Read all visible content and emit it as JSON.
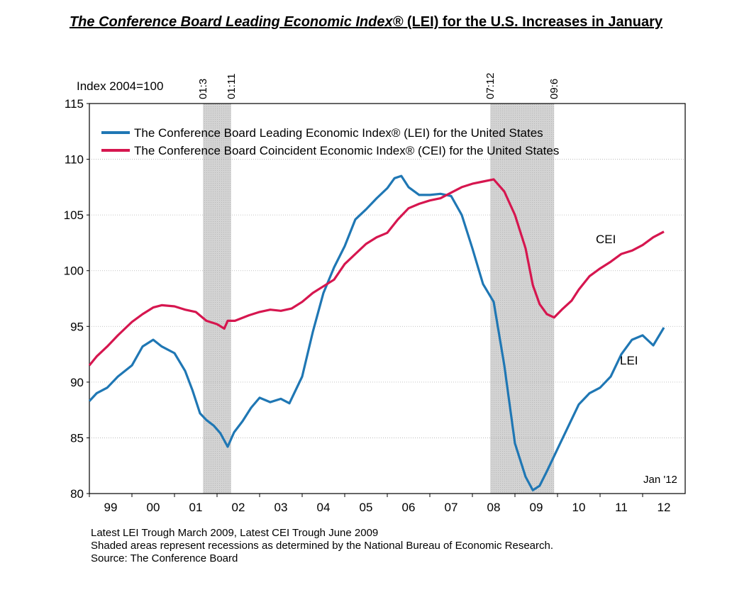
{
  "title": {
    "part1": "The Conference Board Leading Economic Index",
    "reg": "®",
    "part2": " (LEI) for the U.S. Increases in January"
  },
  "notes": [
    "Latest LEI Trough March 2009, Latest CEI Trough June 2009",
    "Shaded areas represent recessions as determined by the National Bureau of Economic Research.",
    "Source: The Conference Board"
  ],
  "colors": {
    "lei": "#1f77b4",
    "cei": "#d6164f",
    "recession": "#d3d3d3"
  },
  "chart_data": {
    "type": "line",
    "ylabel": "Index 2004=100",
    "ylim": [
      80,
      115
    ],
    "yticks": [
      80,
      85,
      90,
      95,
      100,
      105,
      110,
      115
    ],
    "xlim": [
      1998.5,
      2012.5
    ],
    "xtick_labels": [
      {
        "label": "99",
        "x": 1999
      },
      {
        "label": "00",
        "x": 2000
      },
      {
        "label": "01",
        "x": 2001
      },
      {
        "label": "02",
        "x": 2002
      },
      {
        "label": "03",
        "x": 2003
      },
      {
        "label": "04",
        "x": 2004
      },
      {
        "label": "05",
        "x": 2005
      },
      {
        "label": "06",
        "x": 2006
      },
      {
        "label": "07",
        "x": 2007
      },
      {
        "label": "08",
        "x": 2008
      },
      {
        "label": "09",
        "x": 2009
      },
      {
        "label": "10",
        "x": 2010
      },
      {
        "label": "11",
        "x": 2011
      },
      {
        "label": "12",
        "x": 2012
      }
    ],
    "recessions": [
      {
        "start": 2001.17,
        "end": 2001.83,
        "start_label": "01:3",
        "end_label": "01:11"
      },
      {
        "start": 2007.92,
        "end": 2009.42,
        "start_label": "07:12",
        "end_label": "09:6"
      }
    ],
    "annotation": "Jan '12",
    "grid": true,
    "legend_position": "top-left",
    "series": [
      {
        "name": "The Conference Board Leading Economic Index® (LEI) for the United States",
        "label": "LEI",
        "x": [
          1998.5,
          1998.67,
          1998.92,
          1999.17,
          1999.5,
          1999.75,
          2000.0,
          2000.2,
          2000.5,
          2000.75,
          2000.92,
          2001.1,
          2001.25,
          2001.42,
          2001.58,
          2001.75,
          2001.9,
          2002.1,
          2002.3,
          2002.5,
          2002.75,
          2003.0,
          2003.2,
          2003.5,
          2003.75,
          2004.0,
          2004.25,
          2004.5,
          2004.75,
          2005.0,
          2005.25,
          2005.5,
          2005.67,
          2005.83,
          2006.0,
          2006.25,
          2006.5,
          2006.75,
          2007.0,
          2007.25,
          2007.5,
          2007.75,
          2008.0,
          2008.25,
          2008.5,
          2008.75,
          2008.92,
          2009.08,
          2009.25,
          2009.5,
          2009.75,
          2010.0,
          2010.25,
          2010.5,
          2010.75,
          2011.0,
          2011.25,
          2011.5,
          2011.75,
          2012.0
        ],
        "y": [
          88.3,
          89.0,
          89.5,
          90.5,
          91.5,
          93.2,
          93.8,
          93.2,
          92.6,
          91.0,
          89.3,
          87.2,
          86.6,
          86.1,
          85.4,
          84.2,
          85.5,
          86.5,
          87.7,
          88.6,
          88.2,
          88.5,
          88.1,
          90.5,
          94.5,
          98.0,
          100.3,
          102.2,
          104.6,
          105.5,
          106.5,
          107.4,
          108.3,
          108.5,
          107.5,
          106.8,
          106.8,
          106.9,
          106.7,
          105.0,
          102.0,
          98.8,
          97.2,
          91.5,
          84.5,
          81.5,
          80.3,
          80.7,
          82.0,
          84.0,
          86.0,
          88.0,
          89.0,
          89.5,
          90.5,
          92.5,
          93.8,
          94.2,
          93.3,
          94.9
        ]
      },
      {
        "name": "The Conference Board Coincident Economic Index® (CEI) for the United States",
        "label": "CEI",
        "x": [
          1998.5,
          1998.67,
          1998.92,
          1999.17,
          1999.5,
          1999.75,
          2000.0,
          2000.2,
          2000.5,
          2000.75,
          2001.0,
          2001.25,
          2001.5,
          2001.67,
          2001.75,
          2001.92,
          2002.25,
          2002.5,
          2002.75,
          2003.0,
          2003.25,
          2003.5,
          2003.75,
          2004.0,
          2004.25,
          2004.5,
          2004.75,
          2005.0,
          2005.25,
          2005.5,
          2005.75,
          2006.0,
          2006.25,
          2006.5,
          2006.75,
          2007.0,
          2007.25,
          2007.5,
          2007.75,
          2008.0,
          2008.25,
          2008.5,
          2008.75,
          2008.92,
          2009.08,
          2009.25,
          2009.42,
          2009.6,
          2009.83,
          2010.0,
          2010.25,
          2010.5,
          2010.75,
          2011.0,
          2011.25,
          2011.5,
          2011.75,
          2012.0
        ],
        "y": [
          91.5,
          92.3,
          93.2,
          94.2,
          95.4,
          96.1,
          96.7,
          96.9,
          96.8,
          96.5,
          96.3,
          95.5,
          95.2,
          94.8,
          95.5,
          95.5,
          96.0,
          96.3,
          96.5,
          96.4,
          96.6,
          97.2,
          98.0,
          98.6,
          99.2,
          100.6,
          101.5,
          102.4,
          103.0,
          103.4,
          104.6,
          105.6,
          106.0,
          106.3,
          106.5,
          107.0,
          107.5,
          107.8,
          108.0,
          108.2,
          107.1,
          105.0,
          102.0,
          98.7,
          97.0,
          96.1,
          95.8,
          96.5,
          97.3,
          98.3,
          99.5,
          100.2,
          100.8,
          101.5,
          101.8,
          102.3,
          103.0,
          103.5
        ]
      }
    ]
  }
}
